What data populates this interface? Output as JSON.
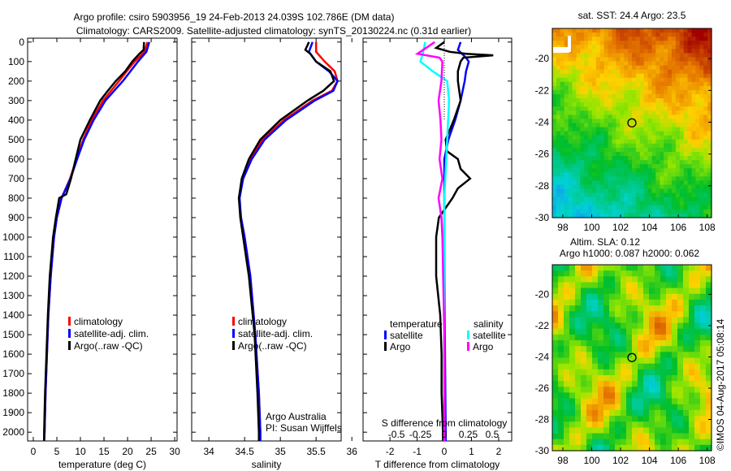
{
  "title_line1": "Argo profile: csiro 5903956_19 24-Feb-2013 24.039S 102.786E (DM data)",
  "title_line2": "Climatology: CARS2009. Satellite-adjusted climatology: synTS_20130224.nc (0.31d earlier)",
  "colors": {
    "climatology": "#ff0000",
    "satellite": "#0000ff",
    "argo": "#000000",
    "sal_sat": "#00ffff",
    "sal_argo": "#ff00ff"
  },
  "chart_data": [
    {
      "type": "line",
      "id": "temp",
      "xlabel": "temperature (deg C)",
      "xlim": [
        -1.2,
        30.5
      ],
      "ylim": [
        -20,
        2045
      ],
      "xticks": [
        0,
        5,
        10,
        15,
        20,
        25,
        30
      ],
      "yticks": [
        0,
        100,
        200,
        300,
        400,
        500,
        600,
        700,
        800,
        900,
        1000,
        1100,
        1200,
        1300,
        1400,
        1500,
        1600,
        1700,
        1800,
        1900,
        2000
      ],
      "legend": [
        "climatology",
        "satellite-adj. clim.",
        "Argo(..raw -QC)"
      ],
      "series": [
        {
          "name": "climatology",
          "color": "#ff0000",
          "depth": [
            0,
            50,
            100,
            150,
            200,
            300,
            400,
            500,
            600,
            700,
            800,
            900,
            1000,
            1200,
            1400,
            1600,
            1800,
            2000,
            2045
          ],
          "values": [
            24.2,
            23.6,
            21.5,
            19.8,
            18.2,
            14.8,
            12.4,
            10.6,
            9.2,
            7.8,
            6.0,
            5.0,
            4.4,
            3.7,
            3.2,
            2.9,
            2.6,
            2.4,
            2.3
          ]
        },
        {
          "name": "satellite-adj. clim.",
          "color": "#0000ff",
          "depth": [
            0,
            50,
            100,
            150,
            200,
            300,
            400,
            500,
            600,
            700,
            800,
            900,
            1000,
            1200,
            1400,
            1600,
            1800,
            2000,
            2045
          ],
          "values": [
            24.6,
            24.0,
            22.2,
            20.6,
            19.0,
            15.3,
            12.8,
            10.8,
            9.3,
            7.9,
            6.0,
            5.0,
            4.4,
            3.7,
            3.2,
            2.9,
            2.6,
            2.4,
            2.3
          ]
        },
        {
          "name": "Argo(..raw -QC)",
          "color": "#000000",
          "depth": [
            0,
            40,
            60,
            100,
            150,
            200,
            250,
            300,
            400,
            500,
            600,
            700,
            780,
            800,
            900,
            1000,
            1200,
            1400,
            1600,
            1800,
            2000,
            2045
          ],
          "values": [
            23.5,
            23.4,
            22.5,
            21.0,
            19.5,
            17.5,
            15.8,
            14.2,
            12.0,
            10.0,
            9.0,
            8.0,
            7.0,
            5.5,
            4.8,
            4.2,
            3.5,
            3.1,
            2.8,
            2.5,
            2.3,
            2.3
          ]
        }
      ]
    },
    {
      "type": "line",
      "id": "sal",
      "xlabel": "salinity",
      "xlim": [
        33.76,
        35.85
      ],
      "ylim": [
        -20,
        2045
      ],
      "xticks": [
        34,
        34.5,
        35,
        35.5,
        36
      ],
      "legend": [
        "climatology",
        "satellite-adj. clim.",
        "Argo(..raw -QC)"
      ],
      "annotation": [
        "Argo Australia",
        "PI: Susan Wijffels"
      ],
      "series": [
        {
          "name": "climatology",
          "color": "#ff0000",
          "depth": [
            0,
            50,
            100,
            150,
            200,
            250,
            300,
            400,
            500,
            600,
            700,
            800,
            900,
            1000,
            1200,
            1500,
            1800,
            2000,
            2045
          ],
          "values": [
            35.5,
            35.5,
            35.62,
            35.76,
            35.8,
            35.72,
            35.45,
            35.05,
            34.75,
            34.58,
            34.47,
            34.42,
            34.45,
            34.5,
            34.58,
            34.65,
            34.7,
            34.72,
            34.72
          ]
        },
        {
          "name": "satellite-adj. clim.",
          "color": "#0000ff",
          "depth": [
            0,
            50,
            100,
            150,
            200,
            250,
            300,
            400,
            500,
            600,
            700,
            800,
            900,
            1000,
            1200,
            1500,
            1800,
            2000,
            2045
          ],
          "values": [
            35.45,
            35.4,
            35.5,
            35.68,
            35.8,
            35.74,
            35.48,
            35.08,
            34.78,
            34.6,
            34.48,
            34.43,
            34.45,
            34.5,
            34.58,
            34.65,
            34.7,
            34.72,
            34.72
          ]
        },
        {
          "name": "Argo(..raw -QC)",
          "color": "#000000",
          "depth": [
            0,
            40,
            60,
            100,
            150,
            200,
            250,
            300,
            400,
            500,
            600,
            700,
            800,
            900,
            1000,
            1200,
            1500,
            1800,
            2000,
            2045
          ],
          "values": [
            35.4,
            35.35,
            35.42,
            35.5,
            35.7,
            35.75,
            35.6,
            35.38,
            35.0,
            34.72,
            34.56,
            34.46,
            34.42,
            34.44,
            34.48,
            34.56,
            34.64,
            34.68,
            34.7,
            34.7
          ]
        }
      ]
    },
    {
      "type": "line",
      "id": "diff",
      "xlabel": "T difference from climatology",
      "x2label": "S difference from climatology",
      "xlim": [
        -2.99,
        2.48
      ],
      "ylim": [
        -20,
        2045
      ],
      "xticks": [
        -2,
        -1,
        0,
        1,
        2
      ],
      "x2ticks": [
        -0.5,
        -0.25,
        0,
        0.25,
        0.5
      ],
      "s_to_t_scale": 3.52,
      "legend_titles": [
        "temperature",
        "salinity"
      ],
      "legend": [
        "satellite",
        "Argo",
        "satellite",
        "Argo"
      ],
      "series": [
        {
          "name": "temperature satellite",
          "color": "#0000ff",
          "unit": "T",
          "depth": [
            0,
            40,
            80,
            100,
            150,
            200,
            300,
            400,
            500,
            600,
            700,
            800,
            1000,
            1500,
            2000,
            2045
          ],
          "values": [
            0.6,
            0.5,
            0.8,
            0.9,
            0.8,
            0.75,
            0.6,
            0.4,
            0.15,
            0.0,
            0.0,
            0.0,
            0.0,
            0.02,
            0.05,
            0.05
          ]
        },
        {
          "name": "temperature Argo",
          "color": "#000000",
          "unit": "T",
          "depth": [
            0,
            30,
            50,
            60,
            68,
            80,
            100,
            150,
            200,
            300,
            400,
            500,
            560,
            600,
            650,
            700,
            750,
            800,
            900,
            1000,
            1200,
            1400,
            1600,
            1800,
            2000,
            2045
          ],
          "values": [
            0,
            -0.3,
            0.2,
            0.8,
            1.8,
            0.7,
            0.6,
            0.5,
            0.5,
            0.6,
            0.35,
            0.05,
            0.1,
            0.5,
            0.6,
            0.95,
            0.5,
            0.3,
            -0.2,
            -0.3,
            -0.3,
            -0.15,
            -0.1,
            -0.1,
            -0.05,
            -0.05
          ]
        },
        {
          "name": "salinity satellite",
          "color": "#00ffff",
          "unit": "S",
          "depth": [
            0,
            50,
            100,
            150,
            200,
            300,
            500,
            800,
            1200,
            2000,
            2045
          ],
          "values": [
            -0.2,
            -0.22,
            -0.25,
            -0.12,
            0.03,
            0.05,
            0.03,
            0.0,
            0.0,
            0.0,
            0.0
          ]
        },
        {
          "name": "salinity Argo",
          "color": "#ff00ff",
          "unit": "S",
          "depth": [
            0,
            60,
            80,
            100,
            200,
            300,
            400,
            500,
            600,
            700,
            800,
            900,
            1000,
            1500,
            2000,
            2045
          ],
          "values": [
            -0.1,
            -0.28,
            -0.05,
            -0.02,
            -0.03,
            -0.06,
            -0.04,
            -0.03,
            -0.05,
            -0.02,
            -0.06,
            -0.03,
            -0.02,
            0.0,
            0.0,
            0.0
          ]
        }
      ]
    },
    {
      "type": "heatmap",
      "id": "sst",
      "title": "sat. SST: 24.4 Argo: 23.5",
      "xticks": [
        98,
        100,
        102,
        104,
        106,
        108
      ],
      "yticks": [
        -20,
        -22,
        -24,
        -26,
        -28,
        -30
      ],
      "marker": {
        "lon": 102.786,
        "lat": -24.039
      }
    },
    {
      "type": "heatmap",
      "id": "sla",
      "title_line1": "Altim. SLA: 0.12",
      "title_line2": "Argo h1000: 0.087 h2000: 0.062",
      "xticks": [
        98,
        100,
        102,
        104,
        106,
        108
      ],
      "yticks": [
        -20,
        -22,
        -24,
        -26,
        -28,
        -30
      ],
      "marker": {
        "lon": 102.786,
        "lat": -24.039
      }
    }
  ],
  "credit": "©IMOS 04-Aug-2017 05:08:14"
}
